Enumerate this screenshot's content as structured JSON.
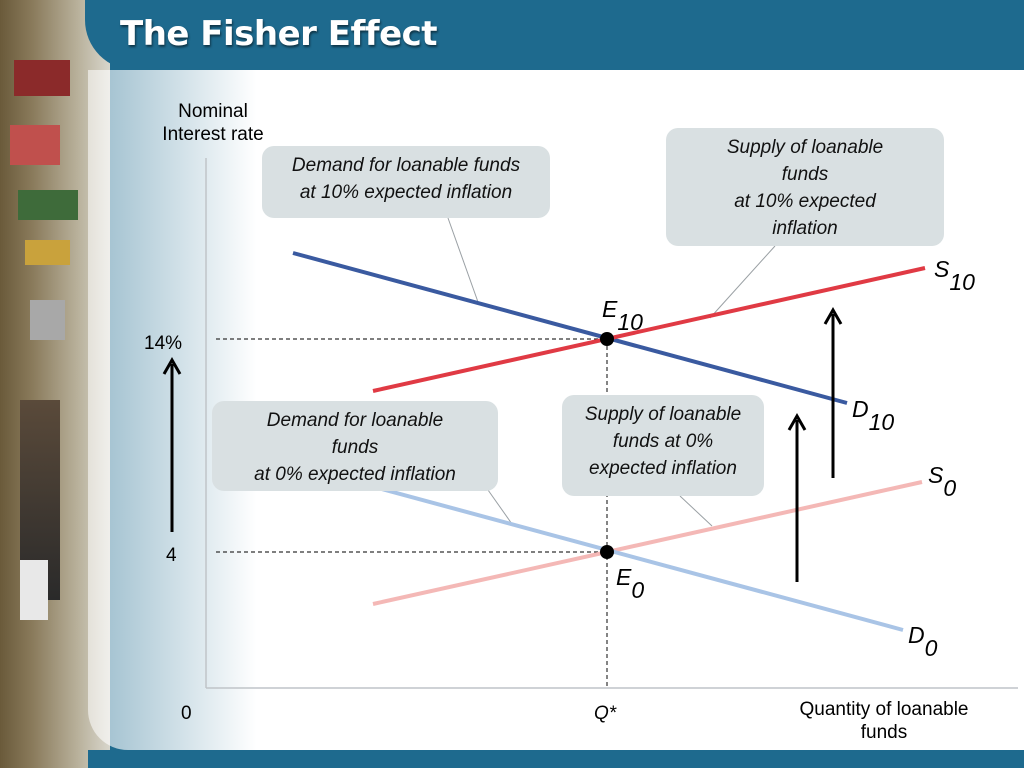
{
  "title": "The Fisher Effect",
  "axes": {
    "y_label_line1": "Nominal",
    "y_label_line2": "Interest rate",
    "x_label_line1": "Quantity of loanable",
    "x_label_line2": "funds",
    "origin": "0",
    "tick_14": "14%",
    "tick_4": "4",
    "q_star": "Q*"
  },
  "callouts": {
    "demand_10_line1": "Demand for loanable funds",
    "demand_10_line2": "at 10% expected inflation",
    "supply_10_line1": "Supply of loanable",
    "supply_10_line2": "funds",
    "supply_10_line3": "at 10% expected",
    "supply_10_line4": "inflation",
    "demand_0_line1": "Demand for loanable",
    "demand_0_line2": "funds",
    "demand_0_line3": "at 0% expected inflation",
    "supply_0_line1": "Supply of loanable",
    "supply_0_line2": "funds at 0%",
    "supply_0_line3": "expected inflation"
  },
  "curve_labels": {
    "s10_main": "S",
    "s10_sub": "10",
    "d10_main": "D",
    "d10_sub": "10",
    "s0_main": "S",
    "s0_sub": "0",
    "d0_main": "D",
    "d0_sub": "0",
    "e10_main": "E",
    "e10_sub": "10",
    "e0_main": "E",
    "e0_sub": "0"
  },
  "colors": {
    "title_bar": "#1e6a8e",
    "demand_10": "#3a5aa0",
    "supply_10": "#e03a44",
    "demand_0": "#a9c4e6",
    "supply_0": "#f4b8b6"
  }
}
